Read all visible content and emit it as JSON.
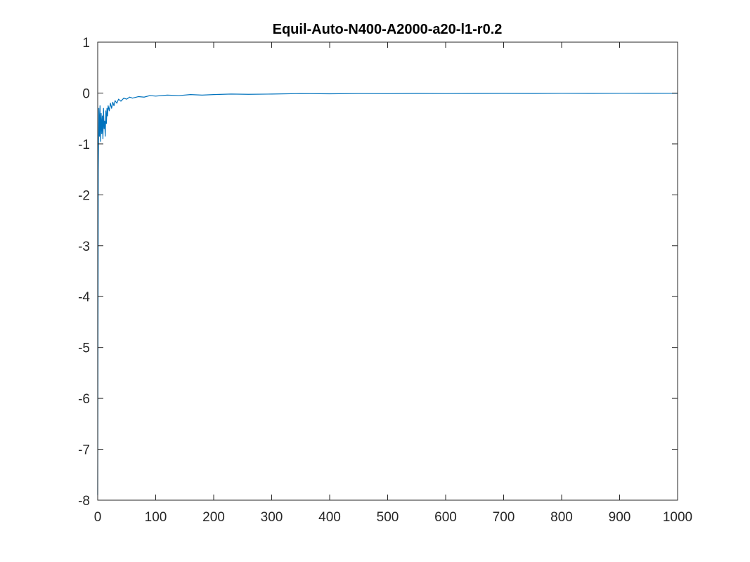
{
  "chart_data": {
    "type": "line",
    "title": "Equil-Auto-N400-A2000-a20-l1-r0.2",
    "xlabel": "",
    "ylabel": "",
    "xlim": [
      0,
      1000
    ],
    "ylim": [
      -8,
      1
    ],
    "xticks": [
      0,
      100,
      200,
      300,
      400,
      500,
      600,
      700,
      800,
      900,
      1000
    ],
    "yticks": [
      1,
      0,
      -1,
      -2,
      -3,
      -4,
      -5,
      -6,
      -7,
      -8
    ],
    "xtick_labels": [
      "0",
      "100",
      "200",
      "300",
      "400",
      "500",
      "600",
      "700",
      "800",
      "900",
      "1000"
    ],
    "ytick_labels": [
      "1",
      "0",
      "-1",
      "-2",
      "-3",
      "-4",
      "-5",
      "-6",
      "-7",
      "-8"
    ],
    "grid": false,
    "box": true,
    "series": [
      {
        "color": "#0072BD",
        "x": [
          0,
          1,
          2,
          3,
          4,
          5,
          6,
          7,
          8,
          9,
          10,
          11,
          12,
          13,
          14,
          15,
          16,
          17,
          18,
          20,
          22,
          24,
          26,
          28,
          30,
          33,
          36,
          40,
          45,
          50,
          55,
          60,
          70,
          80,
          90,
          100,
          120,
          140,
          160,
          180,
          200,
          230,
          260,
          300,
          350,
          400,
          450,
          500,
          550,
          600,
          650,
          700,
          750,
          800,
          850,
          900,
          950,
          1000
        ],
        "y": [
          -7.9,
          -1.5,
          -0.3,
          -0.85,
          -0.25,
          -0.95,
          -0.4,
          -0.8,
          -0.45,
          -0.9,
          -0.3,
          -0.7,
          -0.55,
          -0.85,
          -0.35,
          -0.6,
          -0.3,
          -0.45,
          -0.25,
          -0.35,
          -0.2,
          -0.3,
          -0.18,
          -0.25,
          -0.15,
          -0.2,
          -0.12,
          -0.16,
          -0.1,
          -0.12,
          -0.08,
          -0.1,
          -0.07,
          -0.08,
          -0.05,
          -0.06,
          -0.04,
          -0.05,
          -0.03,
          -0.04,
          -0.03,
          -0.02,
          -0.025,
          -0.02,
          -0.01,
          -0.015,
          -0.01,
          -0.012,
          -0.008,
          -0.01,
          -0.008,
          -0.006,
          -0.008,
          -0.005,
          -0.006,
          -0.005,
          -0.004,
          -0.005
        ]
      }
    ]
  }
}
